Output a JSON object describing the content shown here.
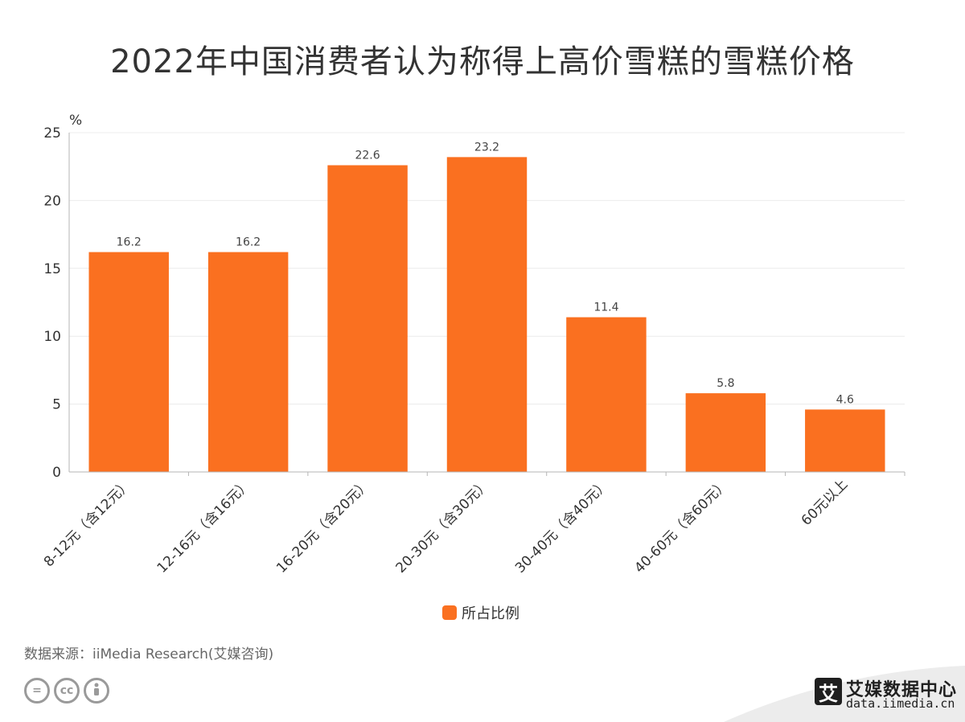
{
  "chart_data": {
    "type": "bar",
    "title": "2022年中国消费者认为称得上高价雪糕的雪糕价格",
    "ylabel": "%",
    "xlabel": "",
    "ylim": [
      0,
      25
    ],
    "yticks": [
      0,
      5,
      10,
      15,
      20,
      25
    ],
    "categories": [
      "8-12元（含12元）",
      "12-16元（含16元）",
      "16-20元（含20元）",
      "20-30元（含30元）",
      "30-40元（含40元）",
      "40-60元（含60元）",
      "60元以上"
    ],
    "series": [
      {
        "name": "所占比例",
        "color": "#FA7020",
        "values": [
          16.2,
          16.2,
          22.6,
          23.2,
          11.4,
          5.8,
          4.6
        ]
      }
    ],
    "grid": true,
    "legend": "bottom-center"
  },
  "footer": {
    "source": "数据来源：iiMedia Research(艾媒咨询)",
    "brand_logo_char": "艾",
    "brand_name": "艾媒数据中心",
    "brand_url": "data.iimedia.cn"
  }
}
